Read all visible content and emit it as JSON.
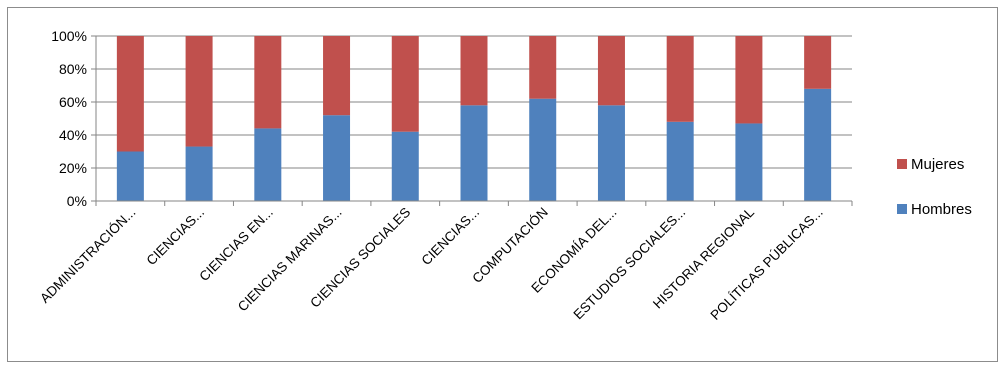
{
  "chart_data": {
    "type": "bar",
    "stacked": "percent",
    "title": "",
    "xlabel": "",
    "ylabel": "",
    "ylim": [
      0,
      100
    ],
    "yticks": [
      "0%",
      "20%",
      "40%",
      "60%",
      "80%",
      "100%"
    ],
    "grid": true,
    "legend_position": "right",
    "categories": [
      "ADMINISTRACIÓN...",
      "CIENCIAS...",
      "CIENCIAS EN...",
      "CIENCIAS MARINAS...",
      "CIENCIAS SOCIALES",
      "CIENCIAS...",
      "COMPUTACIÓN",
      "ECONOMÍA DEL...",
      "ESTUDIOS SOCIALES...",
      "HISTORIA REGIONAL",
      "POLÍTICAS PÚBLICAS..."
    ],
    "series": [
      {
        "name": "Hombres",
        "color": "#4F81BD",
        "values": [
          30,
          33,
          44,
          52,
          42,
          58,
          62,
          58,
          48,
          47,
          68
        ]
      },
      {
        "name": "Mujeres",
        "color": "#C0504D",
        "values": [
          70,
          67,
          56,
          48,
          58,
          42,
          38,
          42,
          52,
          53,
          32
        ]
      }
    ],
    "legend": [
      {
        "name": "Mujeres",
        "color": "#C0504D"
      },
      {
        "name": "Hombres",
        "color": "#4F81BD"
      }
    ]
  }
}
